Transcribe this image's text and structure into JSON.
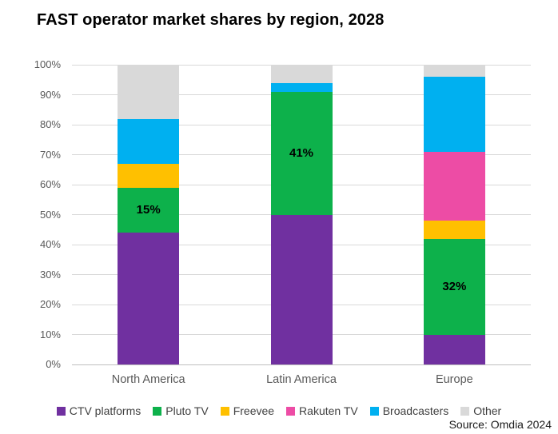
{
  "title": "FAST operator market shares by region, 2028",
  "source": "Source: Omdia 2024",
  "chart_data": {
    "type": "bar",
    "stacked": true,
    "title": "FAST operator market shares by region, 2028",
    "categories": [
      "North America",
      "Latin America",
      "Europe"
    ],
    "series": [
      {
        "name": "CTV platforms",
        "color": "#7030A0",
        "values": [
          44,
          50,
          10
        ],
        "data_labels": [
          "",
          "",
          ""
        ]
      },
      {
        "name": "Pluto TV",
        "color": "#0DB14B",
        "values": [
          15,
          41,
          32
        ],
        "data_labels": [
          "15%",
          "41%",
          "32%"
        ]
      },
      {
        "name": "Freevee",
        "color": "#FFC000",
        "values": [
          8,
          0,
          6
        ],
        "data_labels": [
          "",
          "",
          ""
        ]
      },
      {
        "name": "Rakuten TV",
        "color": "#ED4CA5",
        "values": [
          0,
          0,
          23
        ],
        "data_labels": [
          "",
          "",
          ""
        ]
      },
      {
        "name": "Broadcasters",
        "color": "#00B0F0",
        "values": [
          15,
          3,
          25
        ],
        "data_labels": [
          "",
          "",
          ""
        ]
      },
      {
        "name": "Other",
        "color": "#D9D9D9",
        "values": [
          18,
          6,
          4
        ],
        "data_labels": [
          "",
          "",
          ""
        ]
      }
    ],
    "xlabel": "",
    "ylabel": "",
    "ylim": [
      0,
      100
    ],
    "ytick_step": 10,
    "ytick_labels": [
      "0%",
      "10%",
      "20%",
      "30%",
      "40%",
      "50%",
      "60%",
      "70%",
      "80%",
      "90%",
      "100%"
    ],
    "grid": true,
    "legend_position": "bottom",
    "annotations_note": "data labels shown on Pluto TV segments only"
  }
}
